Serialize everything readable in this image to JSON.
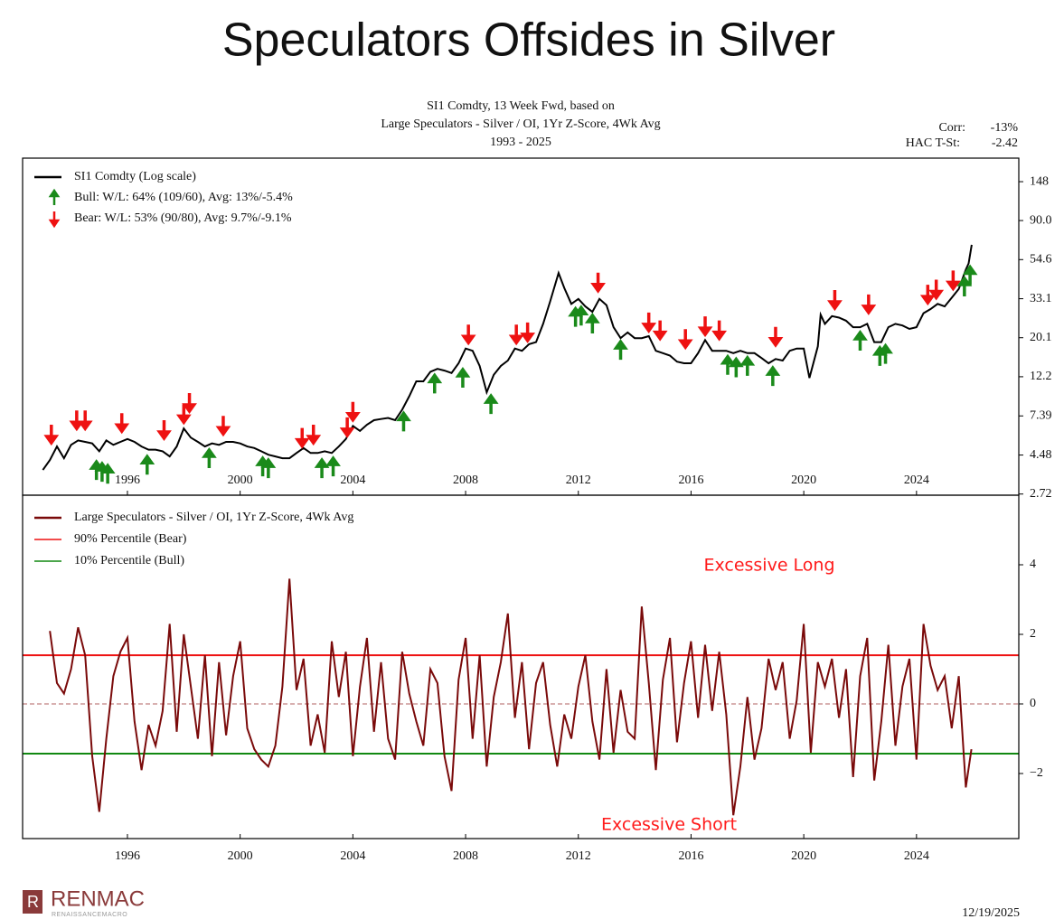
{
  "title": "Speculators Offsides in Silver",
  "footer": {
    "brand": "RENMAC",
    "tagline": "RENAISSANCEMACRO",
    "date": "12/19/2025"
  },
  "chart_data": [
    {
      "type": "line",
      "log_scale": true,
      "subtitle": [
        "SI1 Comdty, 13 Week Fwd, based on",
        "Large Speculators - Silver / OI, 1Yr Z-Score, 4Wk Avg",
        "1993 - 2025"
      ],
      "stats": [
        {
          "label": "Corr:",
          "value": "-13%"
        },
        {
          "label": "HAC T-St:",
          "value": "-2.42"
        }
      ],
      "xlim": [
        1992.28,
        2027.63
      ],
      "xticks": [
        1996,
        2000,
        2004,
        2008,
        2012,
        2016,
        2020,
        2024
      ],
      "ylim": [
        2.68,
        200
      ],
      "yticks": [
        2.72,
        4.48,
        7.39,
        12.2,
        20.1,
        33.1,
        54.6,
        {
          "value": 90.0,
          "label": "90.0"
        },
        148
      ],
      "series": [
        {
          "name": "SI1 Comdty (Log scale)",
          "color": "#000000",
          "x": [
            1993.0,
            1993.25,
            1993.5,
            1993.75,
            1994.0,
            1994.25,
            1994.5,
            1994.75,
            1995.0,
            1995.25,
            1995.5,
            1995.75,
            1996.0,
            1996.25,
            1996.5,
            1996.75,
            1997.0,
            1997.25,
            1997.5,
            1997.75,
            1998.0,
            1998.25,
            1998.5,
            1998.75,
            1999.0,
            1999.25,
            1999.5,
            1999.75,
            2000.0,
            2000.25,
            2000.5,
            2000.75,
            2001.0,
            2001.25,
            2001.5,
            2001.75,
            2002.0,
            2002.25,
            2002.5,
            2002.75,
            2003.0,
            2003.25,
            2003.5,
            2003.75,
            2004.0,
            2004.25,
            2004.5,
            2004.75,
            2005.0,
            2005.25,
            2005.5,
            2005.75,
            2006.0,
            2006.25,
            2006.5,
            2006.75,
            2007.0,
            2007.25,
            2007.5,
            2007.75,
            2008.0,
            2008.25,
            2008.5,
            2008.75,
            2009.0,
            2009.25,
            2009.5,
            2009.75,
            2010.0,
            2010.25,
            2010.5,
            2010.75,
            2011.0,
            2011.3,
            2011.5,
            2011.75,
            2012.0,
            2012.25,
            2012.5,
            2012.75,
            2013.0,
            2013.25,
            2013.5,
            2013.75,
            2014.0,
            2014.25,
            2014.5,
            2014.75,
            2015.0,
            2015.25,
            2015.5,
            2015.75,
            2016.0,
            2016.25,
            2016.5,
            2016.75,
            2017.0,
            2017.25,
            2017.5,
            2017.75,
            2018.0,
            2018.25,
            2018.5,
            2018.75,
            2019.0,
            2019.25,
            2019.5,
            2019.75,
            2020.0,
            2020.2,
            2020.5,
            2020.6,
            2020.75,
            2021.0,
            2021.25,
            2021.5,
            2021.75,
            2022.0,
            2022.25,
            2022.5,
            2022.75,
            2023.0,
            2023.25,
            2023.5,
            2023.75,
            2024.0,
            2024.25,
            2024.5,
            2024.75,
            2025.0,
            2025.25,
            2025.5,
            2025.75,
            2025.85,
            2025.96
          ],
          "values": [
            3.7,
            4.2,
            5.0,
            4.3,
            5.1,
            5.4,
            5.3,
            5.2,
            4.7,
            5.4,
            5.1,
            5.3,
            5.5,
            5.3,
            5.0,
            4.8,
            4.8,
            4.7,
            4.4,
            5.0,
            6.3,
            5.6,
            5.3,
            5.0,
            5.2,
            5.1,
            5.3,
            5.3,
            5.2,
            5.0,
            4.9,
            4.7,
            4.5,
            4.4,
            4.3,
            4.3,
            4.6,
            4.9,
            4.6,
            4.6,
            4.7,
            4.6,
            5.0,
            5.5,
            6.5,
            6.1,
            6.6,
            7.0,
            7.1,
            7.2,
            7.0,
            8.0,
            9.5,
            11.5,
            11.5,
            13.0,
            13.5,
            13.2,
            12.8,
            14.5,
            17.5,
            17.0,
            14.0,
            10.0,
            12.5,
            14.0,
            15.0,
            17.5,
            17.0,
            18.5,
            19.0,
            24.0,
            32.0,
            46.0,
            38.0,
            31.0,
            33.0,
            30.0,
            28.0,
            33.0,
            30.5,
            23.0,
            20.0,
            21.5,
            20.0,
            20.0,
            20.5,
            17.0,
            16.5,
            16.0,
            14.8,
            14.5,
            14.5,
            16.5,
            19.5,
            17.0,
            17.0,
            17.0,
            16.5,
            17.0,
            16.5,
            16.5,
            15.5,
            14.5,
            15.3,
            15.0,
            17.0,
            17.5,
            17.5,
            12.0,
            18.0,
            27.0,
            24.0,
            26.5,
            26.0,
            25.0,
            23.0,
            23.0,
            24.0,
            19.0,
            19.0,
            23.0,
            24.0,
            23.5,
            22.5,
            23.0,
            27.5,
            29.0,
            31.0,
            30.0,
            33.5,
            37.5,
            48.0,
            52.0,
            66.0
          ]
        },
        {
          "name": "Bull:  W/L: 64% (109/60), Avg: 13%/-5.4%",
          "color": "#1a8a1a",
          "marker": "up",
          "x": [
            1994.9,
            1995.1,
            1995.3,
            1996.7,
            1998.9,
            2000.8,
            2001.0,
            2002.9,
            2003.3,
            2005.8,
            2006.9,
            2007.9,
            2008.9,
            2011.9,
            2012.1,
            2012.5,
            2013.5,
            2017.3,
            2017.6,
            2018.0,
            2018.9,
            2022.0,
            2022.7,
            2022.9,
            2025.7,
            2025.9
          ],
          "values": [
            4.3,
            4.2,
            4.1,
            4.6,
            5.0,
            4.5,
            4.4,
            4.4,
            4.5,
            8.0,
            13.0,
            14.0,
            10.0,
            30.5,
            31.0,
            28.0,
            20.0,
            16.5,
            16.0,
            16.3,
            14.3,
            22.5,
            18.5,
            19.0,
            45.0,
            52.0
          ]
        },
        {
          "name": "Bear:  W/L: 53% (90/80), Avg: 9.7%/-9.1%",
          "color": "#ee1111",
          "marker": "down",
          "x": [
            1993.3,
            1994.2,
            1994.5,
            1995.8,
            1997.3,
            1998.0,
            1998.2,
            1999.4,
            2002.2,
            2002.6,
            2003.8,
            2004.0,
            2008.1,
            2009.8,
            2010.2,
            2012.7,
            2014.5,
            2014.9,
            2015.8,
            2016.5,
            2017.0,
            2019.0,
            2021.1,
            2022.3,
            2024.4,
            2024.7,
            2025.3
          ],
          "values": [
            5.0,
            6.0,
            6.0,
            5.8,
            5.3,
            6.5,
            7.5,
            5.6,
            4.8,
            5.0,
            5.5,
            6.7,
            18.0,
            18.0,
            18.5,
            35.0,
            21.0,
            19.0,
            17.0,
            20.0,
            19.0,
            17.5,
            28.0,
            26.5,
            30.0,
            32.0,
            36.0
          ]
        }
      ]
    },
    {
      "type": "line",
      "xlim": [
        1992.28,
        2027.63
      ],
      "xticks": [
        1996,
        2000,
        2004,
        2008,
        2012,
        2016,
        2020,
        2024
      ],
      "ylim": [
        -3.87,
        6.0
      ],
      "yticks": [
        {
          "value": -2,
          "label": "−2"
        },
        0,
        2,
        4
      ],
      "series": [
        {
          "name": "Large Speculators - Silver / OI, 1Yr Z-Score, 4Wk Avg",
          "color": "#7a0a0a",
          "x": [
            1993.25,
            1993.5,
            1993.75,
            1994.0,
            1994.25,
            1994.5,
            1994.75,
            1995.0,
            1995.25,
            1995.5,
            1995.75,
            1996.0,
            1996.25,
            1996.5,
            1996.75,
            1997.0,
            1997.25,
            1997.5,
            1997.75,
            1998.0,
            1998.25,
            1998.5,
            1998.75,
            1999.0,
            1999.25,
            1999.5,
            1999.75,
            2000.0,
            2000.25,
            2000.5,
            2000.75,
            2001.0,
            2001.25,
            2001.5,
            2001.75,
            2002.0,
            2002.25,
            2002.5,
            2002.75,
            2003.0,
            2003.25,
            2003.5,
            2003.75,
            2004.0,
            2004.25,
            2004.5,
            2004.75,
            2005.0,
            2005.25,
            2005.5,
            2005.75,
            2006.0,
            2006.25,
            2006.5,
            2006.75,
            2007.0,
            2007.25,
            2007.5,
            2007.75,
            2008.0,
            2008.25,
            2008.5,
            2008.75,
            2009.0,
            2009.25,
            2009.5,
            2009.75,
            2010.0,
            2010.25,
            2010.5,
            2010.75,
            2011.0,
            2011.25,
            2011.5,
            2011.75,
            2012.0,
            2012.25,
            2012.5,
            2012.75,
            2013.0,
            2013.25,
            2013.5,
            2013.75,
            2014.0,
            2014.25,
            2014.5,
            2014.75,
            2015.0,
            2015.25,
            2015.5,
            2015.75,
            2016.0,
            2016.25,
            2016.5,
            2016.75,
            2017.0,
            2017.25,
            2017.5,
            2017.75,
            2018.0,
            2018.25,
            2018.5,
            2018.75,
            2019.0,
            2019.25,
            2019.5,
            2019.75,
            2020.0,
            2020.25,
            2020.5,
            2020.75,
            2021.0,
            2021.25,
            2021.5,
            2021.75,
            2022.0,
            2022.25,
            2022.5,
            2022.75,
            2023.0,
            2023.25,
            2023.5,
            2023.75,
            2024.0,
            2024.25,
            2024.5,
            2024.75,
            2025.0,
            2025.25,
            2025.5,
            2025.75,
            2025.95
          ],
          "values": [
            2.1,
            0.6,
            0.3,
            1.0,
            2.2,
            1.4,
            -1.5,
            -3.1,
            -1.0,
            0.8,
            1.5,
            1.9,
            -0.5,
            -1.9,
            -0.6,
            -1.2,
            -0.2,
            2.3,
            -0.8,
            2.0,
            0.5,
            -1.0,
            1.4,
            -1.5,
            1.2,
            -0.9,
            0.8,
            1.8,
            -0.7,
            -1.3,
            -1.6,
            -1.8,
            -1.2,
            0.5,
            3.6,
            0.4,
            1.3,
            -1.2,
            -0.3,
            -1.4,
            1.8,
            0.2,
            1.5,
            -1.5,
            0.5,
            1.9,
            -0.8,
            1.2,
            -1.0,
            -1.6,
            1.5,
            0.3,
            -0.5,
            -1.2,
            1.0,
            0.6,
            -1.5,
            -2.5,
            0.7,
            1.9,
            -1.0,
            1.4,
            -1.8,
            0.2,
            1.2,
            2.6,
            -0.4,
            1.2,
            -1.3,
            0.6,
            1.2,
            -0.6,
            -1.8,
            -0.3,
            -1.0,
            0.5,
            1.4,
            -0.5,
            -1.6,
            1.0,
            -1.4,
            0.4,
            -0.8,
            -1.0,
            2.8,
            0.6,
            -1.9,
            0.7,
            1.9,
            -1.1,
            0.6,
            1.8,
            -0.4,
            1.7,
            -0.2,
            1.5,
            -0.3,
            -3.2,
            -1.8,
            0.2,
            -1.6,
            -0.7,
            1.3,
            0.4,
            1.2,
            -1.0,
            0.1,
            2.3,
            -1.4,
            1.2,
            0.5,
            1.3,
            -0.4,
            1.0,
            -2.1,
            0.8,
            1.9,
            -2.2,
            -0.5,
            1.7,
            -1.2,
            0.5,
            1.3,
            -1.6,
            2.3,
            1.1,
            0.4,
            0.8,
            -0.7,
            0.8,
            -2.4,
            -1.3
          ]
        }
      ],
      "hlines": [
        {
          "name": "90% Percentile (Bear)",
          "color": "#ee1111",
          "value": 1.4
        },
        {
          "name": "10% Percentile (Bull)",
          "color": "#118811",
          "value": -1.43
        },
        {
          "color": "#b06060",
          "value": 0,
          "dashed": true
        }
      ],
      "annotations": [
        "Excessive Long",
        "Excessive Short"
      ]
    }
  ]
}
